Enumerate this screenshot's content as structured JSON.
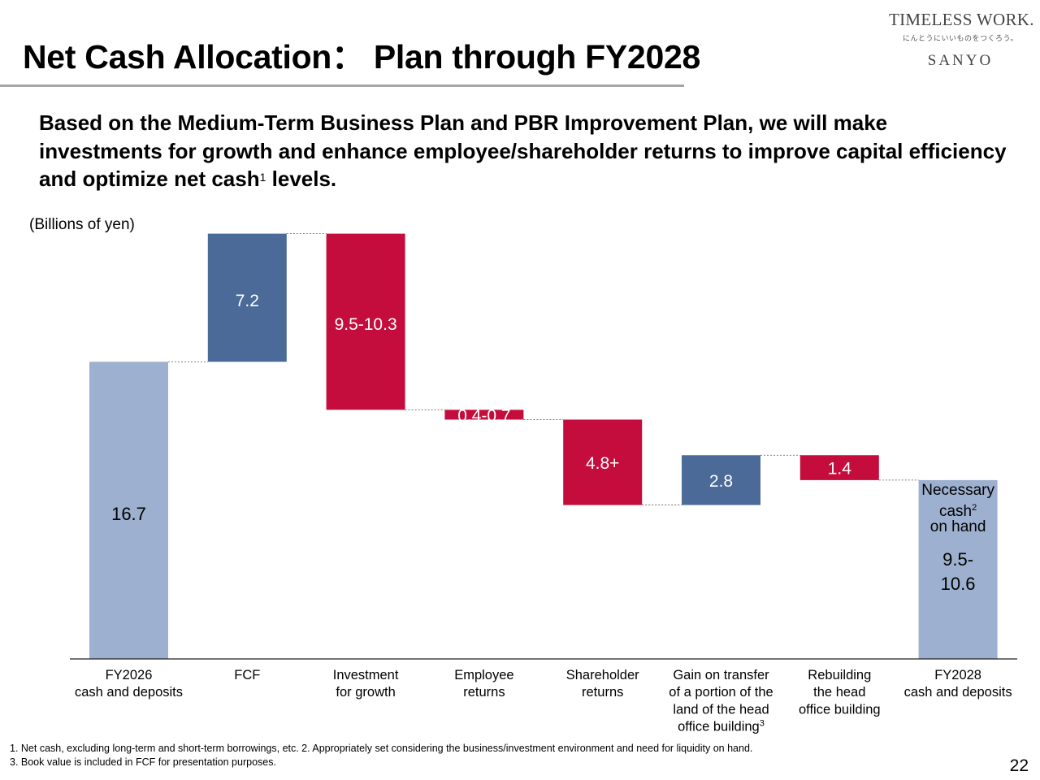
{
  "header": {
    "title": "Net Cash Allocation： Plan through FY2028",
    "logo_main": "TIMELESS WORK.",
    "logo_tagline": "にんとうにいいものをつくろう。",
    "logo_brand": "SANYO"
  },
  "lead": {
    "text": "Based on the Medium-Term Business Plan and PBR Improvement Plan, we will make investments for growth and enhance employee/shareholder returns to improve capital efficiency and optimize net cash",
    "sup": "1",
    "text_end": " levels."
  },
  "chart_data": {
    "type": "waterfall",
    "units_label": "(Billions of yen)",
    "categories": [
      "FY2026\ncash and deposits",
      "FCF",
      "Investment\nfor growth",
      "Employee\nreturns",
      "Shareholder\nreturns",
      "Gain on transfer\nof a portion of the\nland of the head\noffice building",
      "Rebuilding\nthe head\noffice building",
      "FY2028\ncash and deposits"
    ],
    "category_sup": [
      "",
      "",
      "",
      "",
      "",
      "3",
      "",
      ""
    ],
    "bars": [
      {
        "label": "16.7",
        "kind": "total",
        "base": 0,
        "value": 16.7
      },
      {
        "label": "7.2",
        "kind": "increase",
        "base": 16.7,
        "value": 7.2
      },
      {
        "label": "9.5-10.3",
        "kind": "decrease",
        "base": 23.9,
        "value": -9.9
      },
      {
        "label": "0.4-0.7",
        "kind": "decrease",
        "base": 14.0,
        "value": -0.55
      },
      {
        "label": "4.8+",
        "kind": "decrease",
        "base": 13.45,
        "value": -4.8
      },
      {
        "label": "2.8",
        "kind": "increase",
        "base": 8.65,
        "value": 2.8
      },
      {
        "label": "1.4",
        "kind": "decrease",
        "base": 11.45,
        "value": -1.4
      },
      {
        "label": "9.5-\n10.6",
        "kind": "total",
        "base": 0,
        "value": 10.05
      }
    ],
    "final_note": {
      "text": "Necessary\ncash",
      "sup": "2",
      "text_end": "\non hand"
    },
    "ylim": [
      0,
      24
    ],
    "colors": {
      "total": "#9db0cf",
      "increase": "#4b6a98",
      "decrease": "#c40d3c"
    }
  },
  "footnotes": {
    "line1": "1. Net cash, excluding long-term and short-term borrowings, etc.    2. Appropriately set considering the business/investment environment and need for liquidity on hand.",
    "line2": "3. Book value is included in FCF for presentation purposes."
  },
  "page_number": "22"
}
